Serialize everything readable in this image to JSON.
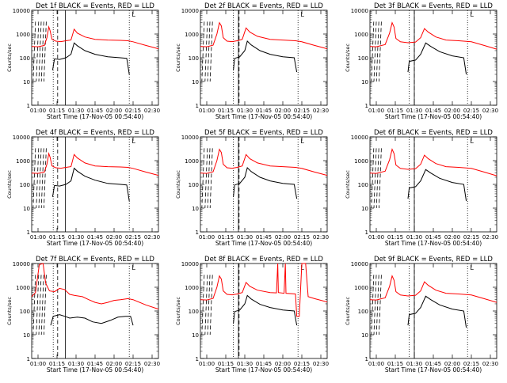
{
  "chart_data": {
    "type": "line",
    "y_scale": "log",
    "ylim": [
      1,
      10000
    ],
    "y_ticks": [
      {
        "value": 1,
        "label": "1"
      },
      {
        "value": 10,
        "label": "10"
      },
      {
        "value": 100,
        "label": "100"
      },
      {
        "value": 1000,
        "label": "1000"
      },
      {
        "value": 10000,
        "label": "10000"
      }
    ],
    "x_ticks": [
      "01:00",
      "01:15",
      "01:30",
      "01:45",
      "02:00",
      "02:15",
      "02:30"
    ],
    "xlim": [
      "00:55",
      "02:35"
    ],
    "ylabel": "Counts/sec",
    "xlabel": "Start Time (17-Nov-05 00:54:40)",
    "colors": {
      "events": "#000000",
      "lld": "#ff0000"
    },
    "corner_label": "L",
    "panels": [
      {
        "title": "Det 1f BLACK = Events, RED = LLD",
        "lld": [
          [
            0.0,
            300
          ],
          [
            0.05,
            290
          ],
          [
            0.1,
            330
          ],
          [
            0.12,
            700
          ],
          [
            0.135,
            2000
          ],
          [
            0.145,
            1400
          ],
          [
            0.16,
            600
          ],
          [
            0.19,
            500
          ],
          [
            0.23,
            480
          ],
          [
            0.27,
            520
          ],
          [
            0.31,
            560
          ],
          [
            0.335,
            1600
          ],
          [
            0.36,
            1100
          ],
          [
            0.42,
            750
          ],
          [
            0.5,
            600
          ],
          [
            0.6,
            560
          ],
          [
            0.7,
            540
          ],
          [
            0.76,
            520
          ],
          [
            0.8,
            470
          ],
          [
            0.9,
            330
          ],
          [
            1.0,
            240
          ]
        ],
        "events": [
          [
            0.165,
            30
          ],
          [
            0.18,
            90
          ],
          [
            0.22,
            85
          ],
          [
            0.27,
            100
          ],
          [
            0.31,
            140
          ],
          [
            0.335,
            420
          ],
          [
            0.36,
            320
          ],
          [
            0.42,
            200
          ],
          [
            0.5,
            140
          ],
          [
            0.6,
            110
          ],
          [
            0.7,
            100
          ],
          [
            0.75,
            95
          ],
          [
            0.77,
            20
          ]
        ]
      },
      {
        "title": "Det 2f BLACK = Events, RED = LLD",
        "lld": [
          [
            0.0,
            300
          ],
          [
            0.05,
            290
          ],
          [
            0.1,
            340
          ],
          [
            0.13,
            1000
          ],
          [
            0.15,
            3000
          ],
          [
            0.165,
            2200
          ],
          [
            0.18,
            700
          ],
          [
            0.21,
            500
          ],
          [
            0.25,
            480
          ],
          [
            0.29,
            520
          ],
          [
            0.33,
            600
          ],
          [
            0.36,
            1800
          ],
          [
            0.39,
            1200
          ],
          [
            0.45,
            800
          ],
          [
            0.55,
            600
          ],
          [
            0.65,
            560
          ],
          [
            0.75,
            520
          ],
          [
            0.8,
            470
          ],
          [
            0.9,
            330
          ],
          [
            1.0,
            240
          ]
        ],
        "events": [
          [
            0.26,
            30
          ],
          [
            0.27,
            95
          ],
          [
            0.31,
            110
          ],
          [
            0.35,
            200
          ],
          [
            0.37,
            500
          ],
          [
            0.4,
            350
          ],
          [
            0.47,
            200
          ],
          [
            0.55,
            140
          ],
          [
            0.65,
            110
          ],
          [
            0.74,
            100
          ],
          [
            0.76,
            25
          ]
        ]
      },
      {
        "title": "Det 3f BLACK = Events, RED = LLD",
        "lld": [
          [
            0.0,
            300
          ],
          [
            0.05,
            290
          ],
          [
            0.12,
            360
          ],
          [
            0.155,
            1100
          ],
          [
            0.175,
            3000
          ],
          [
            0.19,
            2000
          ],
          [
            0.205,
            650
          ],
          [
            0.24,
            470
          ],
          [
            0.3,
            430
          ],
          [
            0.36,
            460
          ],
          [
            0.4,
            700
          ],
          [
            0.43,
            1700
          ],
          [
            0.46,
            1200
          ],
          [
            0.52,
            750
          ],
          [
            0.6,
            560
          ],
          [
            0.7,
            520
          ],
          [
            0.8,
            470
          ],
          [
            0.9,
            330
          ],
          [
            1.0,
            230
          ]
        ],
        "events": [
          [
            0.3,
            25
          ],
          [
            0.31,
            70
          ],
          [
            0.36,
            80
          ],
          [
            0.4,
            140
          ],
          [
            0.44,
            420
          ],
          [
            0.48,
            300
          ],
          [
            0.55,
            180
          ],
          [
            0.65,
            120
          ],
          [
            0.74,
            100
          ],
          [
            0.76,
            20
          ]
        ]
      },
      {
        "title": "Det 4f BLACK = Events, RED = LLD",
        "lld": [
          [
            0.0,
            300
          ],
          [
            0.05,
            290
          ],
          [
            0.1,
            330
          ],
          [
            0.12,
            700
          ],
          [
            0.135,
            2000
          ],
          [
            0.145,
            1400
          ],
          [
            0.16,
            600
          ],
          [
            0.19,
            500
          ],
          [
            0.23,
            480
          ],
          [
            0.27,
            520
          ],
          [
            0.31,
            560
          ],
          [
            0.335,
            1800
          ],
          [
            0.36,
            1300
          ],
          [
            0.42,
            800
          ],
          [
            0.5,
            600
          ],
          [
            0.6,
            560
          ],
          [
            0.7,
            540
          ],
          [
            0.76,
            520
          ],
          [
            0.8,
            470
          ],
          [
            0.9,
            330
          ],
          [
            1.0,
            240
          ]
        ],
        "events": [
          [
            0.165,
            30
          ],
          [
            0.18,
            90
          ],
          [
            0.22,
            85
          ],
          [
            0.27,
            100
          ],
          [
            0.31,
            140
          ],
          [
            0.335,
            480
          ],
          [
            0.36,
            360
          ],
          [
            0.42,
            220
          ],
          [
            0.5,
            150
          ],
          [
            0.6,
            110
          ],
          [
            0.7,
            100
          ],
          [
            0.75,
            95
          ],
          [
            0.77,
            20
          ]
        ]
      },
      {
        "title": "Det 5f BLACK = Events, RED = LLD",
        "lld": [
          [
            0.0,
            300
          ],
          [
            0.05,
            290
          ],
          [
            0.1,
            340
          ],
          [
            0.13,
            1000
          ],
          [
            0.15,
            3000
          ],
          [
            0.165,
            2200
          ],
          [
            0.18,
            700
          ],
          [
            0.21,
            500
          ],
          [
            0.25,
            480
          ],
          [
            0.29,
            520
          ],
          [
            0.33,
            600
          ],
          [
            0.36,
            1800
          ],
          [
            0.39,
            1200
          ],
          [
            0.45,
            800
          ],
          [
            0.55,
            600
          ],
          [
            0.65,
            560
          ],
          [
            0.75,
            520
          ],
          [
            0.8,
            470
          ],
          [
            0.9,
            330
          ],
          [
            1.0,
            240
          ]
        ],
        "events": [
          [
            0.26,
            30
          ],
          [
            0.27,
            95
          ],
          [
            0.31,
            110
          ],
          [
            0.35,
            200
          ],
          [
            0.37,
            500
          ],
          [
            0.4,
            350
          ],
          [
            0.47,
            200
          ],
          [
            0.55,
            140
          ],
          [
            0.65,
            110
          ],
          [
            0.74,
            100
          ],
          [
            0.76,
            25
          ]
        ]
      },
      {
        "title": "Det 6f BLACK = Events, RED = LLD",
        "lld": [
          [
            0.0,
            300
          ],
          [
            0.05,
            290
          ],
          [
            0.12,
            360
          ],
          [
            0.155,
            1100
          ],
          [
            0.175,
            3000
          ],
          [
            0.19,
            2000
          ],
          [
            0.205,
            650
          ],
          [
            0.24,
            470
          ],
          [
            0.3,
            430
          ],
          [
            0.36,
            460
          ],
          [
            0.4,
            700
          ],
          [
            0.43,
            1700
          ],
          [
            0.46,
            1200
          ],
          [
            0.52,
            750
          ],
          [
            0.6,
            560
          ],
          [
            0.7,
            520
          ],
          [
            0.8,
            470
          ],
          [
            0.9,
            330
          ],
          [
            1.0,
            230
          ]
        ],
        "events": [
          [
            0.3,
            25
          ],
          [
            0.31,
            70
          ],
          [
            0.36,
            80
          ],
          [
            0.4,
            140
          ],
          [
            0.44,
            420
          ],
          [
            0.48,
            300
          ],
          [
            0.55,
            180
          ],
          [
            0.65,
            120
          ],
          [
            0.74,
            100
          ],
          [
            0.76,
            20
          ]
        ]
      },
      {
        "title": "Det 7f BLACK = Events, RED = LLD",
        "lld": [
          [
            0.0,
            400
          ],
          [
            0.03,
            600
          ],
          [
            0.06,
            9000
          ],
          [
            0.09,
            10000
          ],
          [
            0.11,
            1500
          ],
          [
            0.14,
            700
          ],
          [
            0.18,
            650
          ],
          [
            0.22,
            900
          ],
          [
            0.26,
            800
          ],
          [
            0.3,
            500
          ],
          [
            0.34,
            450
          ],
          [
            0.4,
            400
          ],
          [
            0.45,
            300
          ],
          [
            0.5,
            230
          ],
          [
            0.55,
            200
          ],
          [
            0.6,
            230
          ],
          [
            0.65,
            280
          ],
          [
            0.7,
            300
          ],
          [
            0.76,
            330
          ],
          [
            0.8,
            300
          ],
          [
            0.9,
            180
          ],
          [
            1.0,
            120
          ]
        ],
        "events": [
          [
            0.15,
            25
          ],
          [
            0.17,
            60
          ],
          [
            0.22,
            70
          ],
          [
            0.26,
            60
          ],
          [
            0.3,
            50
          ],
          [
            0.36,
            55
          ],
          [
            0.42,
            50
          ],
          [
            0.48,
            35
          ],
          [
            0.55,
            30
          ],
          [
            0.62,
            40
          ],
          [
            0.68,
            55
          ],
          [
            0.74,
            60
          ],
          [
            0.78,
            60
          ],
          [
            0.8,
            25
          ]
        ]
      },
      {
        "title": "Det 8f BLACK = Events, RED = LLD",
        "lld": [
          [
            0.0,
            300
          ],
          [
            0.05,
            290
          ],
          [
            0.1,
            340
          ],
          [
            0.13,
            1000
          ],
          [
            0.15,
            3000
          ],
          [
            0.165,
            2200
          ],
          [
            0.18,
            700
          ],
          [
            0.21,
            500
          ],
          [
            0.25,
            480
          ],
          [
            0.29,
            520
          ],
          [
            0.33,
            600
          ],
          [
            0.36,
            1600
          ],
          [
            0.39,
            1100
          ],
          [
            0.45,
            750
          ],
          [
            0.55,
            600
          ],
          [
            0.6,
            580
          ],
          [
            0.61,
            10000
          ],
          [
            0.615,
            600
          ],
          [
            0.66,
            560
          ],
          [
            0.67,
            10000
          ],
          [
            0.675,
            560
          ],
          [
            0.75,
            520
          ],
          [
            0.76,
            60
          ],
          [
            0.78,
            60
          ],
          [
            0.8,
            10000
          ],
          [
            0.83,
            10000
          ],
          [
            0.85,
            400
          ],
          [
            0.9,
            330
          ],
          [
            1.0,
            240
          ]
        ],
        "events": [
          [
            0.26,
            30
          ],
          [
            0.27,
            95
          ],
          [
            0.31,
            110
          ],
          [
            0.35,
            200
          ],
          [
            0.37,
            450
          ],
          [
            0.4,
            320
          ],
          [
            0.47,
            190
          ],
          [
            0.55,
            140
          ],
          [
            0.65,
            110
          ],
          [
            0.74,
            100
          ],
          [
            0.76,
            25
          ]
        ]
      },
      {
        "title": "Det 9f BLACK = Events, RED = LLD",
        "lld": [
          [
            0.0,
            300
          ],
          [
            0.05,
            290
          ],
          [
            0.12,
            360
          ],
          [
            0.155,
            1100
          ],
          [
            0.175,
            3000
          ],
          [
            0.19,
            2000
          ],
          [
            0.205,
            650
          ],
          [
            0.24,
            470
          ],
          [
            0.3,
            430
          ],
          [
            0.36,
            460
          ],
          [
            0.4,
            700
          ],
          [
            0.43,
            1700
          ],
          [
            0.46,
            1200
          ],
          [
            0.52,
            750
          ],
          [
            0.6,
            560
          ],
          [
            0.7,
            520
          ],
          [
            0.8,
            470
          ],
          [
            0.9,
            330
          ],
          [
            1.0,
            230
          ]
        ],
        "events": [
          [
            0.3,
            25
          ],
          [
            0.31,
            70
          ],
          [
            0.36,
            80
          ],
          [
            0.4,
            140
          ],
          [
            0.44,
            420
          ],
          [
            0.48,
            300
          ],
          [
            0.55,
            180
          ],
          [
            0.65,
            120
          ],
          [
            0.74,
            100
          ],
          [
            0.76,
            20
          ]
        ]
      }
    ]
  }
}
